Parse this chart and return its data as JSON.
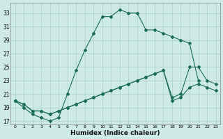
{
  "xlabel": "Humidex (Indice chaleur)",
  "bg_color": "#ceeae4",
  "line_color": "#1a6b5a",
  "grid_color": "#aed4cc",
  "xlim": [
    -0.5,
    23.5
  ],
  "ylim": [
    16.5,
    34.5
  ],
  "xticks": [
    0,
    1,
    2,
    3,
    4,
    5,
    6,
    7,
    8,
    9,
    10,
    11,
    12,
    13,
    14,
    15,
    16,
    17,
    18,
    19,
    20,
    21,
    22,
    23
  ],
  "yticks": [
    17,
    19,
    21,
    23,
    25,
    27,
    29,
    31,
    33
  ],
  "line1_x": [
    0,
    1,
    2,
    3,
    4,
    5,
    6,
    7,
    8,
    9,
    10,
    11,
    12,
    13,
    14,
    15,
    16,
    17,
    18,
    19,
    20,
    21
  ],
  "line1_y": [
    20,
    19,
    18,
    17.5,
    17,
    17.5,
    21,
    24.5,
    27.5,
    30,
    32.5,
    32.5,
    33.5,
    33,
    33,
    30.5,
    30.5,
    30,
    29.5,
    29,
    28.5,
    23
  ],
  "line2_x": [
    0,
    1,
    2,
    3,
    4,
    5,
    6,
    7,
    8,
    9,
    10,
    11,
    12,
    13,
    14,
    15,
    16,
    17,
    18,
    19,
    20,
    21,
    22,
    23
  ],
  "line2_y": [
    20,
    19.5,
    18.5,
    18.5,
    18,
    18.5,
    19,
    19.5,
    20,
    20.5,
    21,
    21.5,
    22,
    22.5,
    23,
    23.5,
    24,
    24.5,
    20.5,
    21,
    25,
    25,
    23,
    22.5
  ],
  "line3_x": [
    0,
    1,
    2,
    3,
    4,
    5,
    6,
    7,
    8,
    9,
    10,
    11,
    12,
    13,
    14,
    15,
    16,
    17,
    18,
    19,
    20,
    21,
    22,
    23
  ],
  "line3_y": [
    20,
    19.5,
    18.5,
    18.5,
    18,
    18.5,
    19,
    19.5,
    20,
    20.5,
    21,
    21.5,
    22,
    22.5,
    23,
    23.5,
    24,
    24.5,
    20,
    20.5,
    22,
    22.5,
    22,
    21.5
  ]
}
